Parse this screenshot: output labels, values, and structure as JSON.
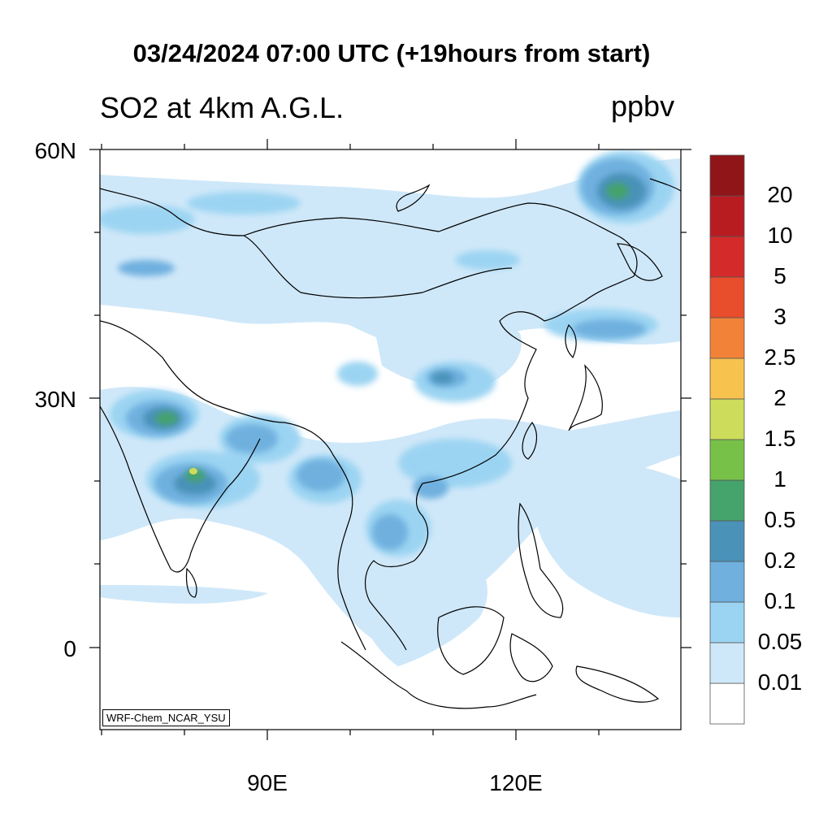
{
  "header": {
    "title": "03/24/2024 07:00 UTC (+19hours from start)",
    "subtitle": "SO2 at 4km A.G.L.",
    "units": "ppbv"
  },
  "map": {
    "lat_labels": [
      "60N",
      "30N",
      "0"
    ],
    "lon_labels": [
      "90E",
      "120E"
    ],
    "credit": "WRF-Chem_NCAR_YSU"
  },
  "colorbar": {
    "levels": [
      "0.01",
      "0.05",
      "0.1",
      "0.2",
      "0.5",
      "1",
      "1.5",
      "2",
      "2.5",
      "3",
      "5",
      "10",
      "20"
    ],
    "colors": [
      "#ffffff",
      "#cfe8f9",
      "#9bd4f2",
      "#6fb0df",
      "#4a92b8",
      "#45a36c",
      "#77c149",
      "#cddc5a",
      "#f8c24f",
      "#f28237",
      "#e84d2c",
      "#d42a2a",
      "#b81c21",
      "#8f1518"
    ]
  }
}
